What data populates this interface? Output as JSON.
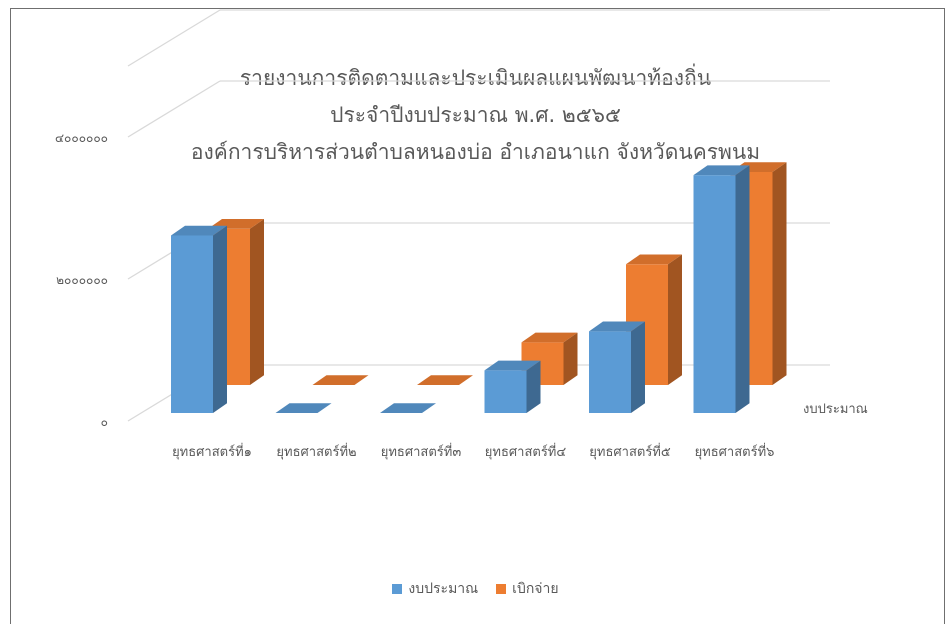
{
  "chart_data": {
    "type": "bar",
    "subtype": "3d-clustered-column",
    "title": [
      "รายงานการติดตามและประเมินผลแผนพัฒนาท้องถิ่น",
      "ประจำปีงบประมาณ  พ.ศ. ๒๕๖๕",
      "องค์การบริหารส่วนตำบลหนองบ่อ   อำเภอนาแก   จังหวัดนครพนม"
    ],
    "categories": [
      "ยุทธศาสตร์ที่๑",
      "ยุทธศาสตร์ที่๒",
      "ยุทธศาสตร์ที่๓",
      "ยุทธศาสตร์ที่๔",
      "ยุทธศาสตร์ที่๕",
      "ยุทธศาสตร์ที่๖"
    ],
    "series": [
      {
        "name": "งบประมาณ",
        "values": [
          2500000,
          0,
          0,
          600000,
          1150000,
          3350000
        ],
        "color": "#5b9bd5"
      },
      {
        "name": "เบิกจ่าย",
        "values": [
          2200000,
          0,
          0,
          600000,
          1700000,
          3000000
        ],
        "color": "#ed7d31"
      }
    ],
    "yticks": [
      0,
      2000000,
      4000000
    ],
    "ytick_labels": [
      "๐",
      "๒๐๐๐๐๐๐",
      "๔๐๐๐๐๐๐"
    ],
    "ylim": [
      0,
      4000000
    ],
    "depth_axis_label": "งบประมาณ",
    "grid": true,
    "legend": "bottom"
  }
}
